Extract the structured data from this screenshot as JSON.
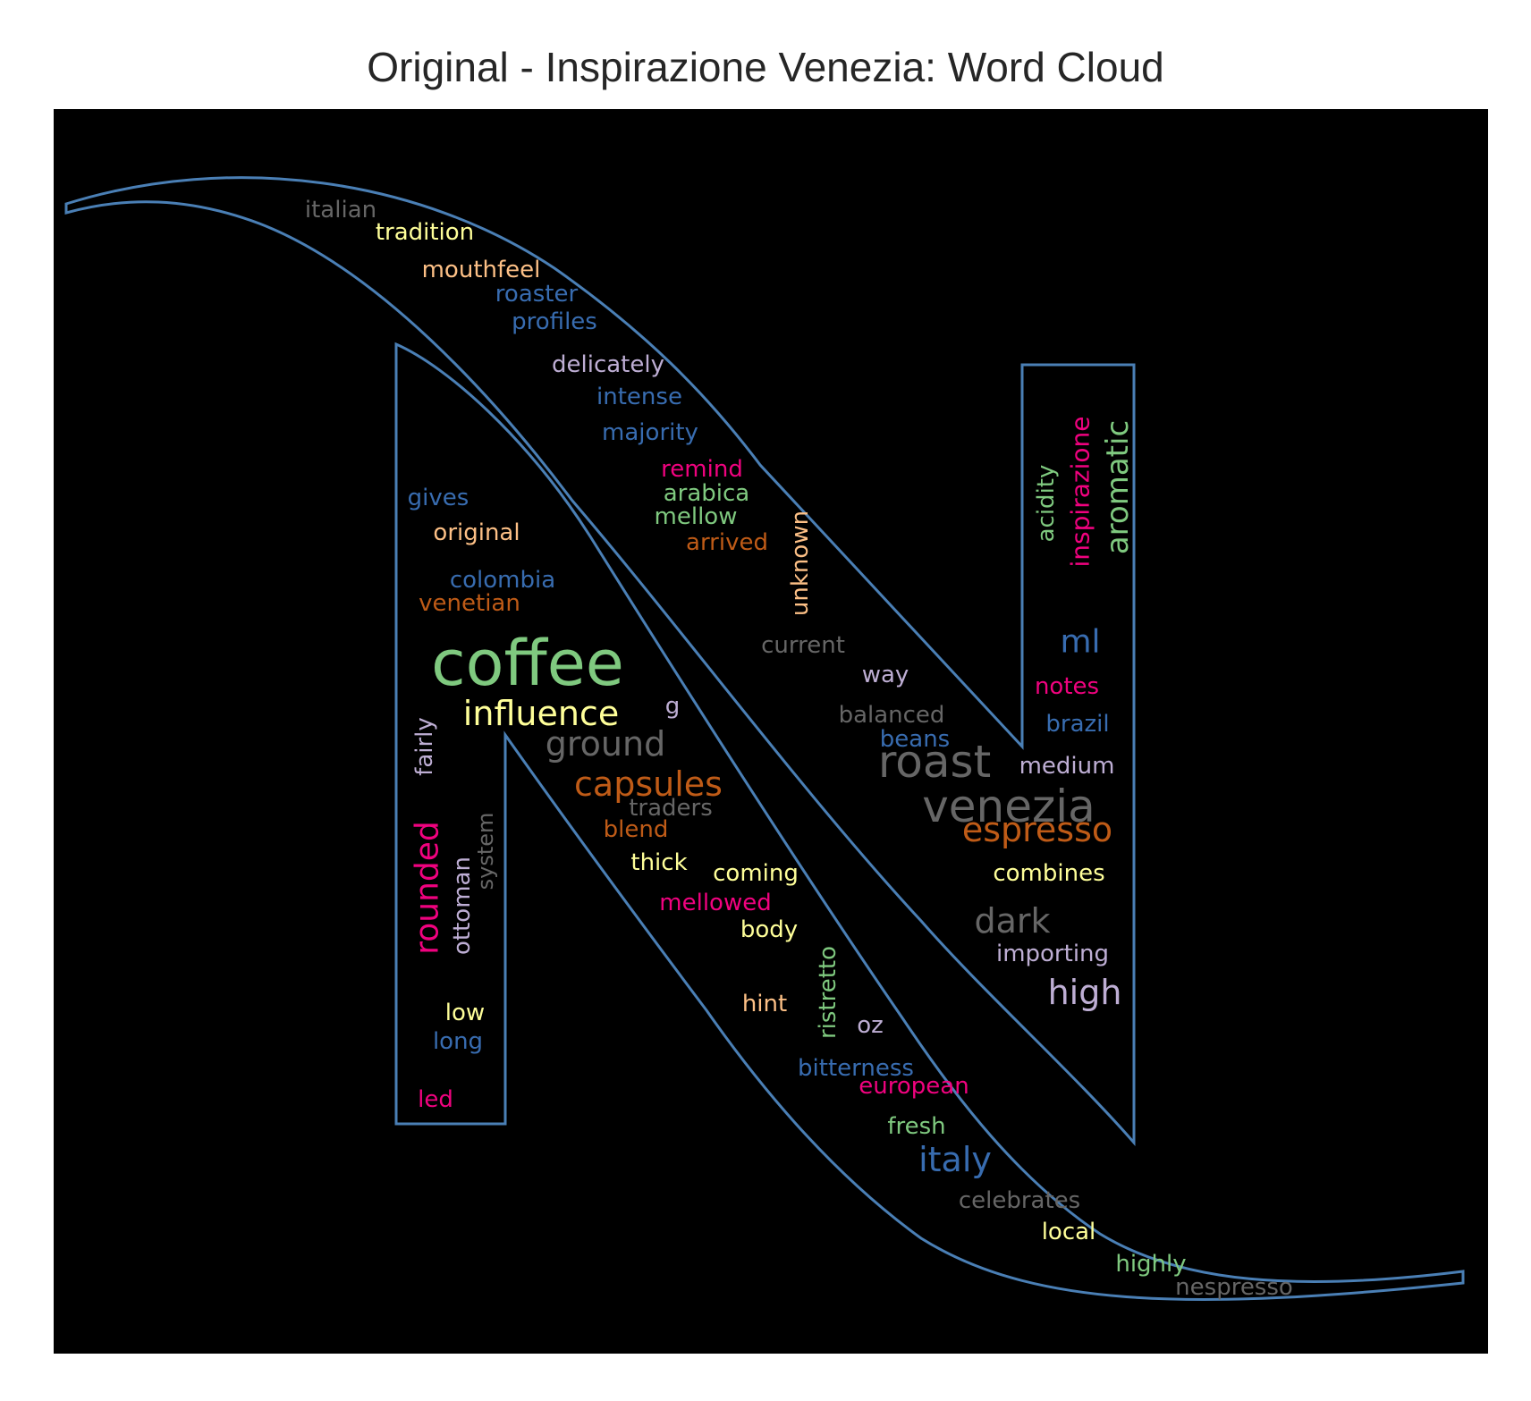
{
  "chart_data": {
    "type": "wordcloud",
    "title": "Original - Inspirazione Venezia: Word Cloud",
    "mask_outline_color": "#4a7fb5",
    "background_color": "#000000",
    "colormap": [
      "#7fc97f",
      "#beaed4",
      "#fdc086",
      "#ffff99",
      "#386cb0",
      "#f0027f",
      "#bf5b17",
      "#666666"
    ],
    "words": [
      {
        "text": "coffee",
        "color": "#7fc97f",
        "vertical": false
      },
      {
        "text": "roast",
        "color": "#666666",
        "vertical": false
      },
      {
        "text": "venezia",
        "color": "#666666",
        "vertical": false
      },
      {
        "text": "influence",
        "color": "#ffff99",
        "vertical": false
      },
      {
        "text": "ground",
        "color": "#666666",
        "vertical": false
      },
      {
        "text": "capsules",
        "color": "#bf5b17",
        "vertical": false
      },
      {
        "text": "espresso",
        "color": "#bf5b17",
        "vertical": false
      },
      {
        "text": "aromatic",
        "color": "#7fc97f",
        "vertical": true
      },
      {
        "text": "rounded",
        "color": "#f0027f",
        "vertical": true
      },
      {
        "text": "italy",
        "color": "#386cb0",
        "vertical": false
      },
      {
        "text": "high",
        "color": "#beaed4",
        "vertical": false
      },
      {
        "text": "dark",
        "color": "#666666",
        "vertical": false
      },
      {
        "text": "ml",
        "color": "#386cb0",
        "vertical": false
      },
      {
        "text": "inspirazione",
        "color": "#f0027f",
        "vertical": true
      },
      {
        "text": "acidity",
        "color": "#7fc97f",
        "vertical": true
      },
      {
        "text": "unknown",
        "color": "#fdc086",
        "vertical": true
      },
      {
        "text": "fairly",
        "color": "#beaed4",
        "vertical": true
      },
      {
        "text": "ottoman",
        "color": "#beaed4",
        "vertical": true
      },
      {
        "text": "system",
        "color": "#666666",
        "vertical": true
      },
      {
        "text": "ristretto",
        "color": "#7fc97f",
        "vertical": true
      },
      {
        "text": "italian",
        "color": "#666666",
        "vertical": false
      },
      {
        "text": "tradition",
        "color": "#ffff99",
        "vertical": false
      },
      {
        "text": "mouthfeel",
        "color": "#fdc086",
        "vertical": false
      },
      {
        "text": "roaster",
        "color": "#386cb0",
        "vertical": false
      },
      {
        "text": "profiles",
        "color": "#386cb0",
        "vertical": false
      },
      {
        "text": "delicately",
        "color": "#beaed4",
        "vertical": false
      },
      {
        "text": "intense",
        "color": "#386cb0",
        "vertical": false
      },
      {
        "text": "majority",
        "color": "#386cb0",
        "vertical": false
      },
      {
        "text": "remind",
        "color": "#f0027f",
        "vertical": false
      },
      {
        "text": "arabica",
        "color": "#7fc97f",
        "vertical": false
      },
      {
        "text": "mellow",
        "color": "#7fc97f",
        "vertical": false
      },
      {
        "text": "arrived",
        "color": "#bf5b17",
        "vertical": false
      },
      {
        "text": "gives",
        "color": "#386cb0",
        "vertical": false
      },
      {
        "text": "original",
        "color": "#fdc086",
        "vertical": false
      },
      {
        "text": "colombia",
        "color": "#386cb0",
        "vertical": false
      },
      {
        "text": "venetian",
        "color": "#bf5b17",
        "vertical": false
      },
      {
        "text": "current",
        "color": "#666666",
        "vertical": false
      },
      {
        "text": "way",
        "color": "#beaed4",
        "vertical": false
      },
      {
        "text": "balanced",
        "color": "#666666",
        "vertical": false
      },
      {
        "text": "beans",
        "color": "#386cb0",
        "vertical": false
      },
      {
        "text": "g",
        "color": "#beaed4",
        "vertical": false
      },
      {
        "text": "notes",
        "color": "#f0027f",
        "vertical": false
      },
      {
        "text": "brazil",
        "color": "#386cb0",
        "vertical": false
      },
      {
        "text": "medium",
        "color": "#beaed4",
        "vertical": false
      },
      {
        "text": "traders",
        "color": "#666666",
        "vertical": false
      },
      {
        "text": "blend",
        "color": "#bf5b17",
        "vertical": false
      },
      {
        "text": "thick",
        "color": "#ffff99",
        "vertical": false
      },
      {
        "text": "coming",
        "color": "#ffff99",
        "vertical": false
      },
      {
        "text": "mellowed",
        "color": "#f0027f",
        "vertical": false
      },
      {
        "text": "body",
        "color": "#ffff99",
        "vertical": false
      },
      {
        "text": "combines",
        "color": "#ffff99",
        "vertical": false
      },
      {
        "text": "importing",
        "color": "#beaed4",
        "vertical": false
      },
      {
        "text": "low",
        "color": "#ffff99",
        "vertical": false
      },
      {
        "text": "long",
        "color": "#386cb0",
        "vertical": false
      },
      {
        "text": "led",
        "color": "#f0027f",
        "vertical": false
      },
      {
        "text": "hint",
        "color": "#fdc086",
        "vertical": false
      },
      {
        "text": "oz",
        "color": "#beaed4",
        "vertical": false
      },
      {
        "text": "bitterness",
        "color": "#386cb0",
        "vertical": false
      },
      {
        "text": "european",
        "color": "#f0027f",
        "vertical": false
      },
      {
        "text": "fresh",
        "color": "#7fc97f",
        "vertical": false
      },
      {
        "text": "celebrates",
        "color": "#666666",
        "vertical": false
      },
      {
        "text": "local",
        "color": "#ffff99",
        "vertical": false
      },
      {
        "text": "highly",
        "color": "#7fc97f",
        "vertical": false
      },
      {
        "text": "nespresso",
        "color": "#666666",
        "vertical": false
      }
    ]
  }
}
